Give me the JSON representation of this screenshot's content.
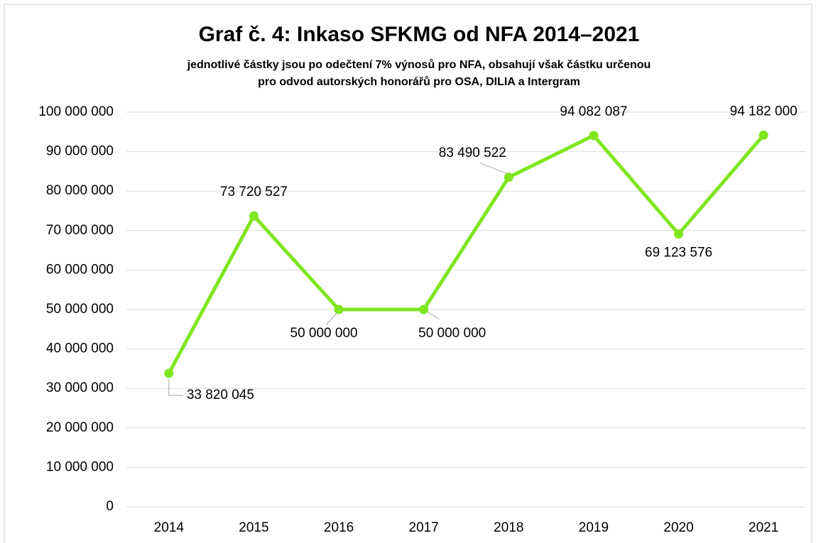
{
  "chart_data": {
    "type": "line",
    "title": "Graf č. 4: Inkaso SFKMG od NFA 2014–2021",
    "subtitle": [
      "jednotlivé částky jsou po odečtení 7% výnosů pro NFA, obsahují však částku určenou",
      "pro odvod autorských honorářů pro OSA, DILIA a Intergram"
    ],
    "categories": [
      "2014",
      "2015",
      "2016",
      "2017",
      "2018",
      "2019",
      "2020",
      "2021"
    ],
    "values": [
      33820045,
      73720527,
      50000000,
      50000000,
      83490522,
      94082087,
      69123576,
      94182000
    ],
    "value_labels": [
      "33 820 045",
      "73 720 527",
      "50 000 000",
      "50 000 000",
      "83 490 522",
      "94 082 087",
      "69 123 576",
      "94 182 000"
    ],
    "color": "#7fe51f",
    "ylim": [
      0,
      100000000
    ],
    "yticks": [
      0,
      {
        "value": 10000000,
        "label": "10 000 000"
      },
      {
        "value": 20000000,
        "label": "20 000 000"
      },
      {
        "value": 30000000,
        "label": "30 000 000"
      },
      {
        "value": 40000000,
        "label": "40 000 000"
      },
      {
        "value": 50000000,
        "label": "50 000 000"
      },
      {
        "value": 60000000,
        "label": "60 000 000"
      },
      {
        "value": 70000000,
        "label": "70 000 000"
      },
      {
        "value": 80000000,
        "label": "80 000 000"
      },
      {
        "value": 90000000,
        "label": "90 000 000"
      },
      {
        "value": 100000000,
        "label": "100 000 000"
      }
    ],
    "grid": true
  }
}
